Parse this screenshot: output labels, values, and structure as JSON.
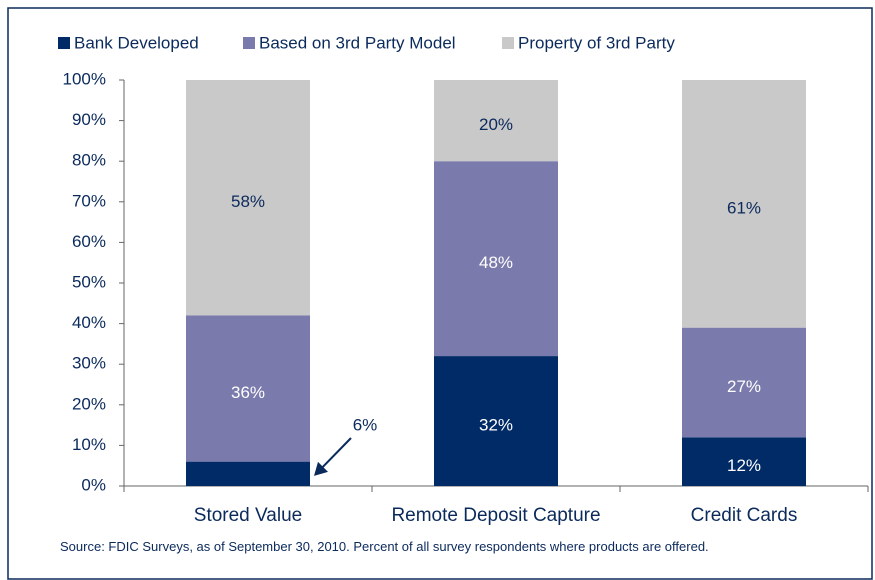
{
  "chart_data": {
    "type": "stacked_bar",
    "categories": [
      "Stored Value",
      "Remote Deposit Capture",
      "Credit Cards"
    ],
    "series": [
      {
        "name": "Bank Developed",
        "color": "#002b66",
        "values": [
          6,
          32,
          12
        ],
        "value_labels": [
          "6%",
          "32%",
          "12%"
        ]
      },
      {
        "name": "Based on 3rd Party Model",
        "color": "#7a7aac",
        "values": [
          36,
          48,
          27
        ],
        "value_labels": [
          "36%",
          "48%",
          "27%"
        ]
      },
      {
        "name": "Property of 3rd Party",
        "color": "#c9c9c9",
        "values": [
          58,
          20,
          61
        ],
        "value_labels": [
          "58%",
          "20%",
          "61%"
        ]
      }
    ],
    "ylim": [
      0,
      100
    ],
    "yticks": [
      {
        "value": 0,
        "label": "0%"
      },
      {
        "value": 10,
        "label": "10%"
      },
      {
        "value": 20,
        "label": "20%"
      },
      {
        "value": 30,
        "label": "30%"
      },
      {
        "value": 40,
        "label": "40%"
      },
      {
        "value": 50,
        "label": "50%"
      },
      {
        "value": 60,
        "label": "60%"
      },
      {
        "value": 70,
        "label": "70%"
      },
      {
        "value": 80,
        "label": "80%"
      },
      {
        "value": 90,
        "label": "90%"
      },
      {
        "value": 100,
        "label": "100%"
      }
    ],
    "legend": "top-left",
    "source": "Source: FDIC Surveys, as of September 30, 2010.  Percent of all survey respondents where products are offered."
  }
}
